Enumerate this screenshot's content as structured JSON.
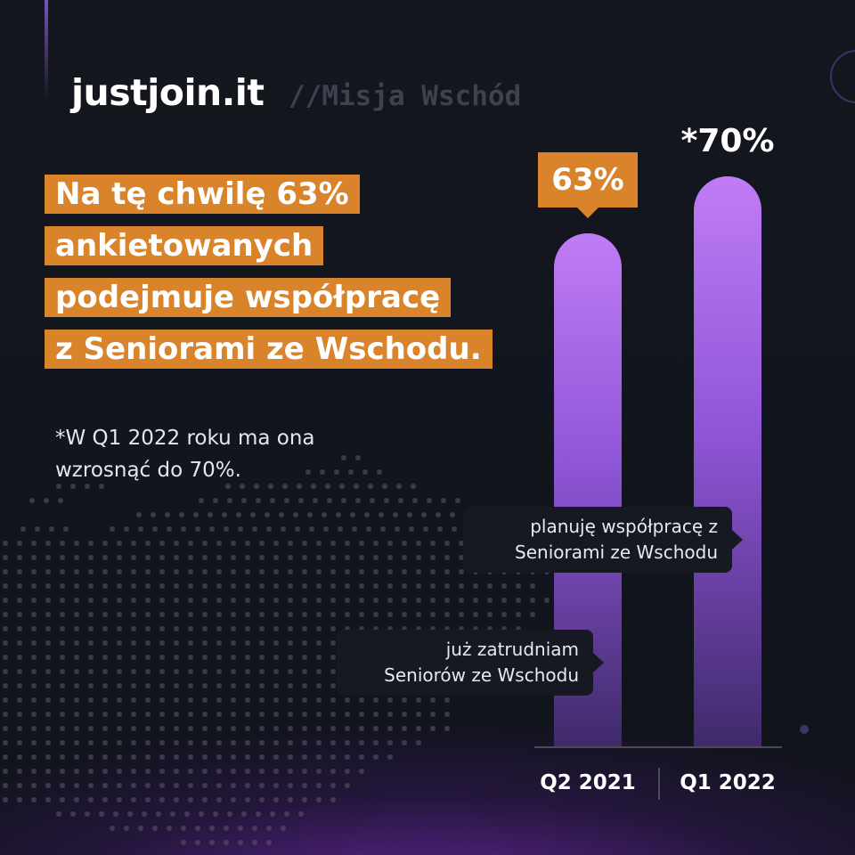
{
  "brand": {
    "logo": "justjoin.it",
    "tagline": "//Misja Wschód"
  },
  "headline": {
    "lines": [
      "Na tę chwilę 63%",
      "ankietowanych",
      "podejmuje współpracę",
      "z Seniorami ze Wschodu."
    ]
  },
  "footnote": {
    "lines": [
      "*W Q1 2022 roku ma ona",
      "wzrosnąć do 70%."
    ]
  },
  "colors": {
    "accent_orange": "#d9832b",
    "bar_top": "#c07cf4",
    "bar_bottom": "#3f2a6a",
    "background": "#11141c"
  },
  "chart_data": {
    "type": "bar",
    "categories": [
      "Q2 2021",
      "Q1 2022"
    ],
    "values": [
      63,
      70
    ],
    "value_labels": [
      "63%",
      "*70%"
    ],
    "ylim": [
      0,
      100
    ],
    "grid": false,
    "annotations": [
      {
        "lines": [
          "już zatrudniam",
          "Seniorów ze Wschodu"
        ]
      },
      {
        "lines": [
          "planuję współpracę z",
          "Seniorami ze Wschodu"
        ]
      }
    ]
  }
}
